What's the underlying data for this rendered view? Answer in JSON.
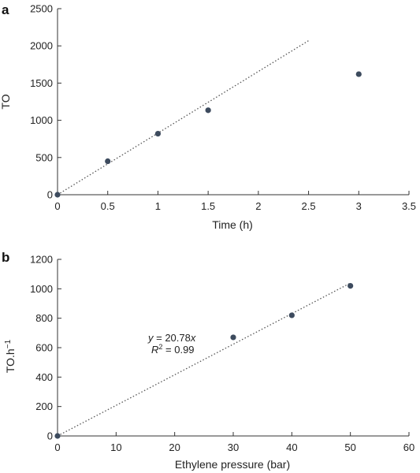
{
  "chart_data": [
    {
      "panel_label": "a",
      "type": "scatter",
      "xlabel": "Time (h)",
      "ylabel": "TO",
      "xlim": [
        0,
        3.5
      ],
      "ylim": [
        0,
        2500
      ],
      "xticks": [
        "0",
        "0.5",
        "1",
        "1.5",
        "2",
        "2.5",
        "3",
        "3.5"
      ],
      "xtick_values": [
        0,
        0.5,
        1,
        1.5,
        2,
        2.5,
        3,
        3.5
      ],
      "yticks": [
        "0",
        "500",
        "1000",
        "1500",
        "2000",
        "2500"
      ],
      "ytick_values": [
        0,
        500,
        1000,
        1500,
        2000,
        2500
      ],
      "grid": false,
      "series": [
        {
          "x": [
            0,
            0.5,
            1,
            1.5,
            3
          ],
          "y": [
            0,
            450,
            820,
            1135,
            1620
          ],
          "color": "#3d4b5e"
        }
      ],
      "trendline": {
        "x": [
          0,
          2.5
        ],
        "y": [
          0,
          2070
        ],
        "style": "dotted"
      },
      "annotations": []
    },
    {
      "panel_label": "b",
      "type": "scatter",
      "xlabel": "Ethylene pressure (bar)",
      "ylabel": "TO.h",
      "ylabel_superscript": "−1",
      "xlim": [
        0,
        60
      ],
      "ylim": [
        0,
        1200
      ],
      "xticks": [
        "0",
        "10",
        "20",
        "30",
        "40",
        "50",
        "60"
      ],
      "xtick_values": [
        0,
        10,
        20,
        30,
        40,
        50,
        60
      ],
      "yticks": [
        "0",
        "200",
        "400",
        "600",
        "800",
        "1000",
        "1200"
      ],
      "ytick_values": [
        0,
        200,
        400,
        600,
        800,
        1000,
        1200
      ],
      "grid": false,
      "series": [
        {
          "x": [
            0,
            30,
            40,
            50
          ],
          "y": [
            0,
            670,
            820,
            1020
          ],
          "color": "#3d4b5e"
        }
      ],
      "trendline": {
        "x": [
          0,
          50
        ],
        "y": [
          0,
          1039
        ],
        "style": "dotted"
      },
      "annotations": [
        {
          "italic": "y",
          "text": " = 20.78",
          "italic2": "x"
        },
        {
          "italic": "R",
          "sup": "2",
          "text": " = 0.99"
        }
      ]
    }
  ]
}
